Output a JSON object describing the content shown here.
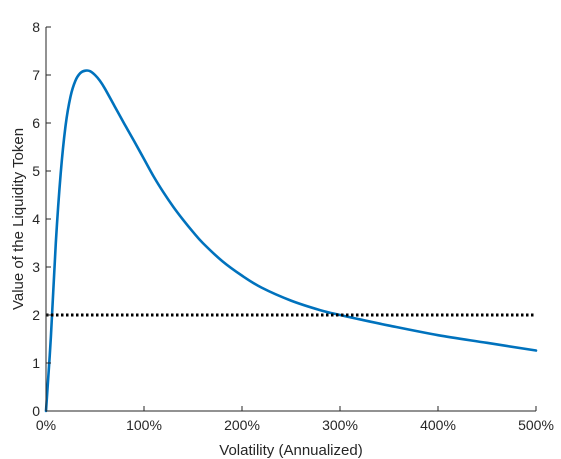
{
  "chart_data": {
    "type": "line",
    "title": "",
    "xlabel": "Volatility (Annualized)",
    "ylabel": "Value of the Liquidity Token",
    "xlim": [
      0,
      500
    ],
    "ylim": [
      0,
      8
    ],
    "x_ticks": [
      0,
      100,
      200,
      300,
      400,
      500
    ],
    "x_tick_labels": [
      "0%",
      "100%",
      "200%",
      "300%",
      "400%",
      "500%"
    ],
    "y_ticks": [
      0,
      1,
      2,
      3,
      4,
      5,
      6,
      7,
      8
    ],
    "y_tick_labels": [
      "0",
      "1",
      "2",
      "3",
      "4",
      "5",
      "6",
      "7",
      "8"
    ],
    "grid": false,
    "series": [
      {
        "color": "#0072bd",
        "style": "solid",
        "x": [
          0,
          5,
          10,
          15,
          20,
          25,
          30,
          35,
          40,
          45,
          50,
          55,
          60,
          70,
          80,
          90,
          100,
          110,
          120,
          130,
          140,
          150,
          160,
          180,
          200,
          220,
          250,
          280,
          300,
          320,
          350,
          400,
          450,
          500
        ],
        "y": [
          0.0,
          1.55,
          3.5,
          4.95,
          5.95,
          6.55,
          6.88,
          7.04,
          7.09,
          7.08,
          7.0,
          6.88,
          6.72,
          6.35,
          5.98,
          5.62,
          5.25,
          4.88,
          4.55,
          4.25,
          3.98,
          3.73,
          3.5,
          3.12,
          2.82,
          2.57,
          2.3,
          2.1,
          2.0,
          1.91,
          1.78,
          1.58,
          1.42,
          1.26
        ]
      },
      {
        "color": "#000000",
        "style": "dotted",
        "x": [
          0,
          500
        ],
        "y": [
          2,
          2
        ]
      }
    ]
  }
}
